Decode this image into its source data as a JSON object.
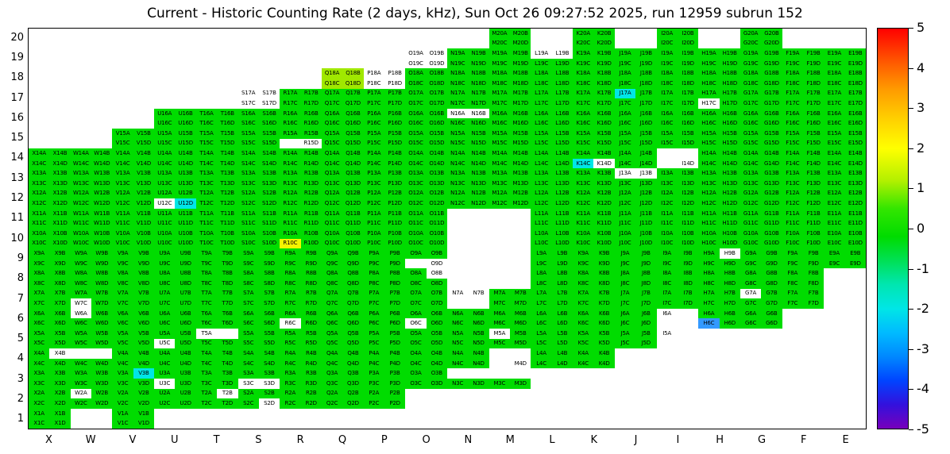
{
  "chart_data": {
    "type": "heatmap",
    "title": "Current - Historic Counting Rate (2 days, kHz), Sun Oct 26 09:27:52 2025, run 12959 subrun 152",
    "x_categories": [
      "X",
      "W",
      "V",
      "U",
      "T",
      "S",
      "R",
      "Q",
      "P",
      "O",
      "N",
      "M",
      "L",
      "K",
      "J",
      "I",
      "H",
      "G",
      "F",
      "E"
    ],
    "y_categories": [
      20,
      19,
      18,
      17,
      16,
      15,
      14,
      13,
      12,
      11,
      10,
      9,
      8,
      7,
      6,
      5,
      4,
      3,
      2,
      1
    ],
    "cell_quarters": [
      "A",
      "B",
      "C",
      "D"
    ],
    "legend_position": "right",
    "grid": "off",
    "colorbar": {
      "min": -5,
      "max": 5,
      "ticks": [
        5,
        4,
        3,
        2,
        1,
        0,
        -1,
        -2,
        -3,
        -4,
        -5
      ],
      "gradient_stops": [
        [
          "0%",
          "#ff0000"
        ],
        [
          "8%",
          "#ff5500"
        ],
        [
          "15%",
          "#ff9900"
        ],
        [
          "22%",
          "#ffcc00"
        ],
        [
          "30%",
          "#ffff00"
        ],
        [
          "38%",
          "#b3f000"
        ],
        [
          "45%",
          "#33e600"
        ],
        [
          "52%",
          "#00dc00"
        ],
        [
          "58%",
          "#00e055"
        ],
        [
          "64%",
          "#00e6b0"
        ],
        [
          "70%",
          "#00e6e6"
        ],
        [
          "76%",
          "#00bbff"
        ],
        [
          "82%",
          "#0088ff"
        ],
        [
          "88%",
          "#0044ff"
        ],
        [
          "94%",
          "#3311dd"
        ],
        [
          "100%",
          "#7700bb"
        ]
      ]
    },
    "value_colors": {
      "green": "#00dc00",
      "chartreuse": "#a0e800",
      "yellow": "#f4f400",
      "cyan": "#00e6e6",
      "blue": "#3399ff",
      "white": "#ffffff"
    },
    "approx_values_khz": {
      "green": 0.5,
      "chartreuse": 1.7,
      "yellow": 2.6,
      "cyan": -1.4,
      "blue": -2.6,
      "white": null
    },
    "present": {
      "20": [
        "M",
        "K",
        "I",
        "G"
      ],
      "19": [
        "O",
        "N",
        "M",
        "L",
        "K",
        "J",
        "I",
        "H",
        "G",
        "F",
        "E"
      ],
      "18": [
        "Q",
        "P",
        "O",
        "N",
        "M",
        "L",
        "K",
        "J",
        "I",
        "H",
        "G",
        "F",
        "E"
      ],
      "17": [
        "S",
        "R",
        "Q",
        "P",
        "O",
        "N",
        "M",
        "L",
        "K",
        "J",
        "I",
        "H",
        "G",
        "F",
        "E"
      ],
      "16": [
        "U",
        "T",
        "S",
        "R",
        "Q",
        "P",
        "O",
        "N",
        "M",
        "L",
        "K",
        "J",
        "I",
        "H",
        "G",
        "F",
        "E"
      ],
      "15": [
        "V",
        "U",
        "T",
        "S",
        "R",
        "Q",
        "P",
        "O",
        "N",
        "M",
        "L",
        "K",
        "J",
        "I",
        "H",
        "G",
        "F",
        "E"
      ],
      "14": [
        "X",
        "W",
        "V",
        "U",
        "T",
        "S",
        "R",
        "Q",
        "P",
        "O",
        "N",
        "M",
        "L",
        "K",
        "J",
        "I",
        "H",
        "G",
        "F",
        "E"
      ],
      "13": [
        "X",
        "W",
        "V",
        "U",
        "T",
        "S",
        "R",
        "Q",
        "P",
        "O",
        "N",
        "M",
        "L",
        "K",
        "J",
        "I",
        "H",
        "G",
        "F",
        "E"
      ],
      "12": [
        "X",
        "W",
        "V",
        "U",
        "T",
        "S",
        "R",
        "Q",
        "P",
        "O",
        "N",
        "M",
        "L",
        "K",
        "J",
        "I",
        "H",
        "G",
        "F",
        "E"
      ],
      "11": [
        "X",
        "W",
        "V",
        "U",
        "T",
        "S",
        "R",
        "Q",
        "P",
        "O",
        "L",
        "K",
        "J",
        "I",
        "H",
        "G",
        "F",
        "E"
      ],
      "10": [
        "X",
        "W",
        "V",
        "U",
        "T",
        "S",
        "R",
        "Q",
        "P",
        "O",
        "L",
        "K",
        "J",
        "I",
        "H",
        "G",
        "F",
        "E"
      ],
      "9": [
        "X",
        "W",
        "V",
        "U",
        "T",
        "S",
        "R",
        "Q",
        "P",
        "O",
        "L",
        "K",
        "J",
        "I",
        "H",
        "G",
        "F",
        "E"
      ],
      "8": [
        "X",
        "W",
        "V",
        "U",
        "T",
        "S",
        "R",
        "Q",
        "P",
        "O",
        "L",
        "K",
        "J",
        "I",
        "H",
        "G",
        "F"
      ],
      "7": [
        "X",
        "W",
        "V",
        "U",
        "T",
        "S",
        "R",
        "Q",
        "P",
        "O",
        "N",
        "M",
        "L",
        "K",
        "J",
        "I",
        "H",
        "G",
        "F"
      ],
      "6": [
        "X",
        "W",
        "V",
        "U",
        "T",
        "S",
        "R",
        "Q",
        "P",
        "O",
        "N",
        "M",
        "L",
        "K",
        "J",
        "I",
        "H",
        "G"
      ],
      "5": [
        "X",
        "W",
        "V",
        "U",
        "T",
        "S",
        "R",
        "Q",
        "P",
        "O",
        "N",
        "M",
        "L",
        "K",
        "J",
        "I"
      ],
      "4": [
        "X",
        "W",
        "V",
        "U",
        "T",
        "S",
        "R",
        "Q",
        "P",
        "O",
        "N",
        "M",
        "L",
        "K"
      ],
      "3": [
        "X",
        "W",
        "V",
        "U",
        "T",
        "S",
        "R",
        "Q",
        "P",
        "O",
        "N",
        "M"
      ],
      "2": [
        "X",
        "W",
        "V",
        "U",
        "T",
        "S",
        "R",
        "Q",
        "P"
      ],
      "1": [
        "X",
        "V"
      ]
    },
    "quarter_color_overrides": {
      "O19A": "white",
      "O19B": "white",
      "O19C": "white",
      "O19D": "white",
      "L19A": "white",
      "L19B": "white",
      "Q18A": "chartreuse",
      "Q18B": "chartreuse",
      "Q18C": "chartreuse",
      "Q18D": "chartreuse",
      "P18A": "white",
      "P18B": "white",
      "P18C": "white",
      "P18D": "white",
      "S17A": "white",
      "S17B": "white",
      "S17C": "white",
      "S17D": "white",
      "J17A": "cyan",
      "H17C": "white",
      "N16A": "white",
      "N16B": "white",
      "R15D": "white",
      "K14C": "cyan",
      "K14D": "white",
      "I14D": "white",
      "J13A": "white",
      "J13B": "white",
      "U12C": "white",
      "U12D": "cyan",
      "R10C": "yellow",
      "O9D": "white",
      "H9B": "white",
      "O8B": "white",
      "N7A": "white",
      "N7B": "white",
      "W7C": "white",
      "G7A": "white",
      "W6A": "white",
      "R6C": "white",
      "O6C": "white",
      "I6A": "white",
      "H6C": "blue",
      "M5A": "white",
      "T5A": "white",
      "U5C": "white",
      "I5A": "white",
      "M4D": "white",
      "X4B": "white",
      "V3B": "cyan",
      "U3C": "white",
      "S3C": "white",
      "S3D": "white",
      "W2A": "white",
      "T2B": "white",
      "S2D": "white"
    },
    "absent_quarters": [
      "R15C",
      "I14A",
      "I14B",
      "I14C",
      "O9C",
      "N7C",
      "N7D",
      "I6B",
      "I6C",
      "I6D",
      "T5B",
      "I5B",
      "I5C",
      "I5D",
      "W4A",
      "W4B",
      "M4A",
      "M4B",
      "M4C",
      "N3A",
      "N3B",
      "M3A",
      "M3B"
    ]
  }
}
